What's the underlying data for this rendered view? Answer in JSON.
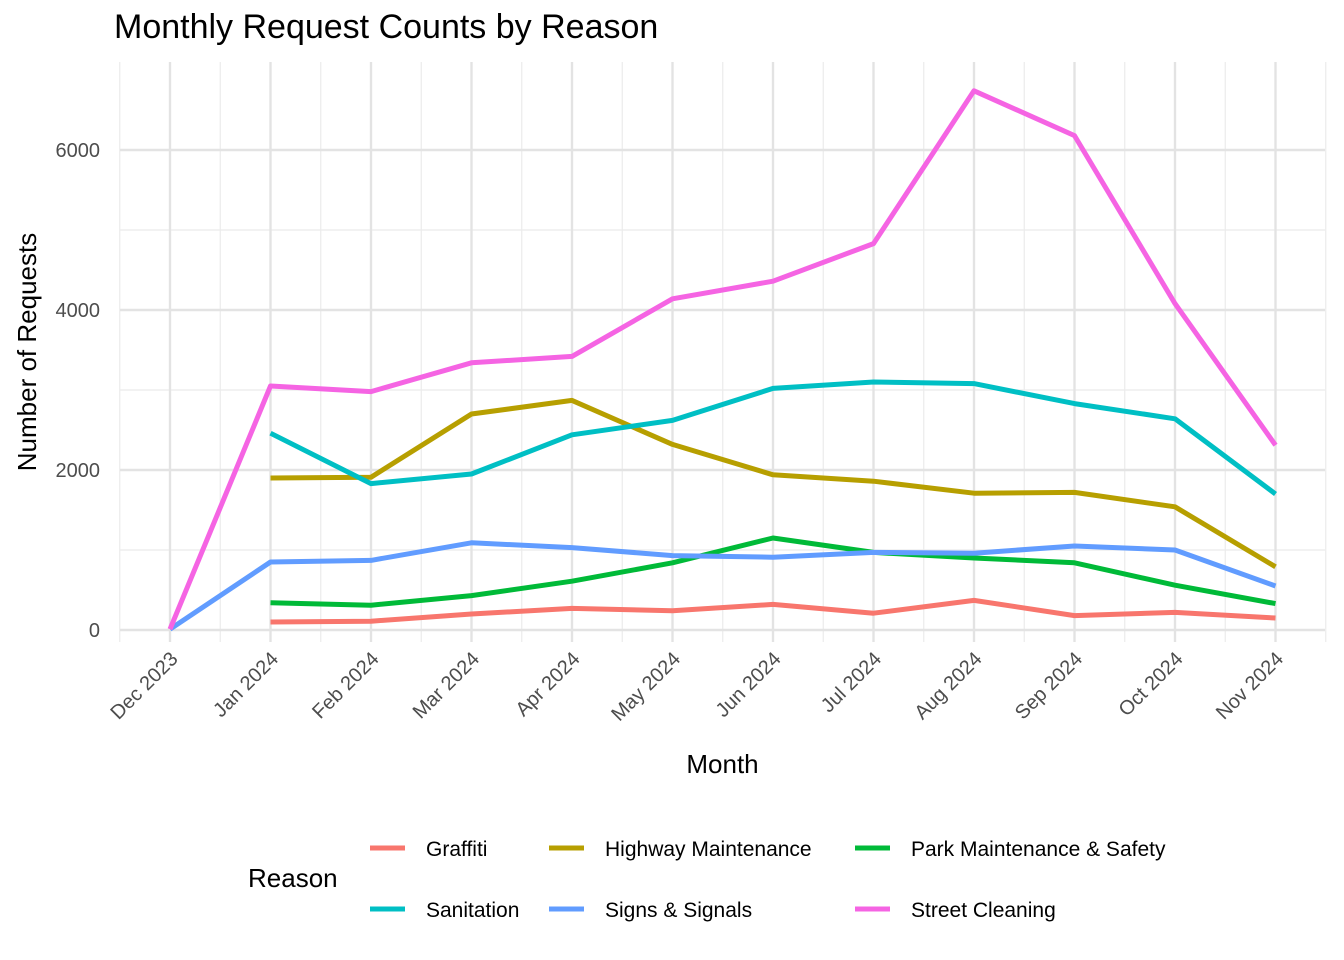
{
  "chart_data": {
    "type": "line",
    "title": "Monthly Request Counts by Reason",
    "xlabel": "Month",
    "ylabel": "Number of Requests",
    "categories": [
      "Dec 2023",
      "Jan 2024",
      "Feb 2024",
      "Mar 2024",
      "Apr 2024",
      "May 2024",
      "Jun 2024",
      "Jul 2024",
      "Aug 2024",
      "Sep 2024",
      "Oct 2024",
      "Nov 2024"
    ],
    "ylim": [
      -150,
      7100
    ],
    "yticks": [
      0,
      2000,
      4000,
      6000
    ],
    "grid": true,
    "legend": {
      "title": "Reason",
      "position": "bottom"
    },
    "series": [
      {
        "name": "Graffiti",
        "color": "#F8766D",
        "values": [
          null,
          100,
          110,
          200,
          270,
          240,
          320,
          210,
          370,
          180,
          220,
          150
        ]
      },
      {
        "name": "Highway Maintenance",
        "color": "#B79F00",
        "values": [
          null,
          1900,
          1910,
          2700,
          2870,
          2320,
          1940,
          1860,
          1710,
          1720,
          1540,
          790
        ]
      },
      {
        "name": "Park Maintenance & Safety",
        "color": "#00BA38",
        "values": [
          null,
          340,
          310,
          430,
          610,
          840,
          1150,
          970,
          900,
          840,
          560,
          330
        ]
      },
      {
        "name": "Sanitation",
        "color": "#00BFC4",
        "values": [
          null,
          2460,
          1830,
          1950,
          2440,
          2620,
          3020,
          3100,
          3080,
          2830,
          2640,
          1700
        ]
      },
      {
        "name": "Signs & Signals",
        "color": "#619CFF",
        "values": [
          10,
          850,
          870,
          1090,
          1030,
          930,
          910,
          970,
          960,
          1050,
          1000,
          550
        ]
      },
      {
        "name": "Street Cleaning",
        "color": "#F564E3",
        "values": [
          10,
          3050,
          2980,
          3340,
          3420,
          4140,
          4360,
          4830,
          6740,
          6180,
          4080,
          2310
        ]
      }
    ]
  }
}
